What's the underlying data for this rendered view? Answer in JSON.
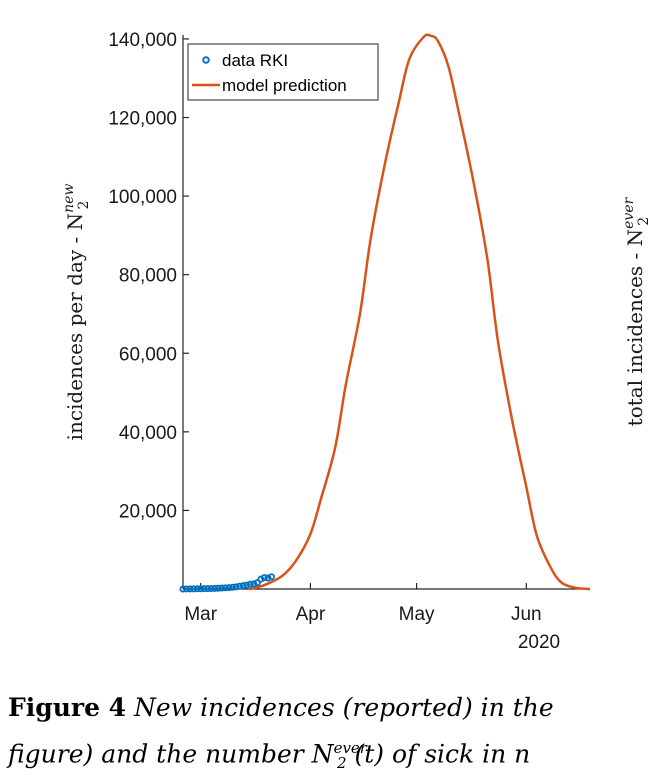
{
  "chart_data": {
    "type": "line",
    "title": "",
    "xlabel": "",
    "ylabel": "incidences per day - N",
    "ylabel_sup": "new",
    "ylabel_sub": "2",
    "x_tick_labels": [
      "Mar",
      "Apr",
      "May",
      "Jun"
    ],
    "x_tick_year": "2020",
    "x_range": [
      "2020-02-25",
      "2020-06-19"
    ],
    "y_ticks": [
      20000,
      40000,
      60000,
      80000,
      100000,
      120000,
      140000
    ],
    "y_tick_labels": [
      "20,000",
      "40,000",
      "60,000",
      "80,000",
      "100,000",
      "120,000",
      "140,000"
    ],
    "ylim": [
      0,
      141000
    ],
    "grid": false,
    "legend_position": "top-left",
    "series": [
      {
        "name": "data RKI",
        "kind": "scatter",
        "color": "#0072BD",
        "points": [
          [
            "2020-02-25",
            0
          ],
          [
            "2020-02-26",
            10
          ],
          [
            "2020-02-27",
            20
          ],
          [
            "2020-02-28",
            30
          ],
          [
            "2020-02-29",
            50
          ],
          [
            "2020-03-01",
            60
          ],
          [
            "2020-03-02",
            80
          ],
          [
            "2020-03-03",
            100
          ],
          [
            "2020-03-04",
            130
          ],
          [
            "2020-03-05",
            160
          ],
          [
            "2020-03-06",
            200
          ],
          [
            "2020-03-07",
            250
          ],
          [
            "2020-03-08",
            300
          ],
          [
            "2020-03-09",
            350
          ],
          [
            "2020-03-10",
            450
          ],
          [
            "2020-03-11",
            550
          ],
          [
            "2020-03-12",
            700
          ],
          [
            "2020-03-13",
            850
          ],
          [
            "2020-03-14",
            1000
          ],
          [
            "2020-03-15",
            1200
          ],
          [
            "2020-03-16",
            1300
          ],
          [
            "2020-03-17",
            1600
          ],
          [
            "2020-03-18",
            2500
          ],
          [
            "2020-03-19",
            2900
          ],
          [
            "2020-03-20",
            2800
          ],
          [
            "2020-03-21",
            3100
          ]
        ]
      },
      {
        "name": "model prediction",
        "kind": "line",
        "color": "#D95319",
        "points": [
          [
            "2020-03-15",
            0
          ],
          [
            "2020-03-19",
            1000
          ],
          [
            "2020-03-24",
            3300
          ],
          [
            "2020-03-28",
            7300
          ],
          [
            "2020-04-01",
            14000
          ],
          [
            "2020-04-04",
            23000
          ],
          [
            "2020-04-08",
            36000
          ],
          [
            "2020-04-11",
            52000
          ],
          [
            "2020-04-15",
            70000
          ],
          [
            "2020-04-18",
            89000
          ],
          [
            "2020-04-22",
            108000
          ],
          [
            "2020-04-26",
            124000
          ],
          [
            "2020-04-29",
            135000
          ],
          [
            "2020-05-03",
            140500
          ],
          [
            "2020-05-05",
            140800
          ],
          [
            "2020-05-07",
            139500
          ],
          [
            "2020-05-10",
            133000
          ],
          [
            "2020-05-13",
            121000
          ],
          [
            "2020-05-17",
            104000
          ],
          [
            "2020-05-21",
            84000
          ],
          [
            "2020-05-24",
            63000
          ],
          [
            "2020-05-28",
            43000
          ],
          [
            "2020-06-01",
            26000
          ],
          [
            "2020-06-04",
            13500
          ],
          [
            "2020-06-08",
            5300
          ],
          [
            "2020-06-11",
            1600
          ],
          [
            "2020-06-15",
            300
          ],
          [
            "2020-06-19",
            0
          ]
        ]
      }
    ]
  },
  "right_panel": {
    "ylabel": "total incidences - N",
    "ylabel_sup": "ever",
    "ylabel_sub": "2"
  },
  "caption": {
    "figure_label": "Figure 4",
    "line1": "New incidences (reported) in the",
    "line2_a": "figure) and the number N",
    "line2_sup": "ever",
    "line2_sub": "2",
    "line2_b": "(t) of sick in n"
  }
}
